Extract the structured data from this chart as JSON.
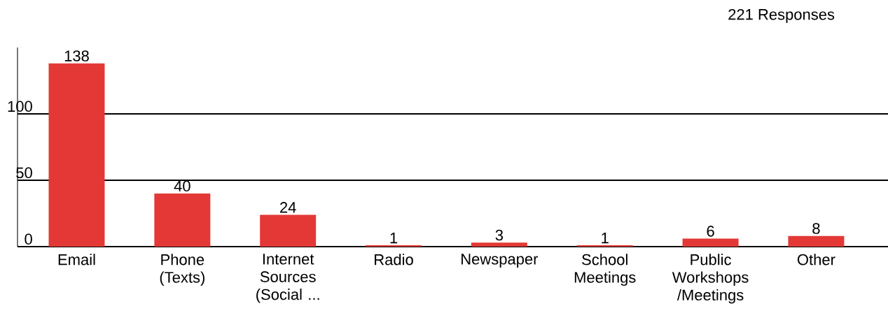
{
  "chart_data": {
    "type": "bar",
    "categories": [
      "Email",
      "Phone (Texts)",
      "Internet Sources (Social ...",
      "Radio",
      "Newspaper",
      "School Meetings",
      "Public Workshops /Meetings",
      "Other"
    ],
    "values": [
      138,
      40,
      24,
      1,
      3,
      1,
      6,
      8
    ],
    "color": "#e33835",
    "data_labels": true,
    "ylim": [
      0,
      150
    ],
    "yticks": [
      0,
      50,
      100
    ],
    "grid": "y",
    "annotations": [
      "221 Responses"
    ]
  }
}
